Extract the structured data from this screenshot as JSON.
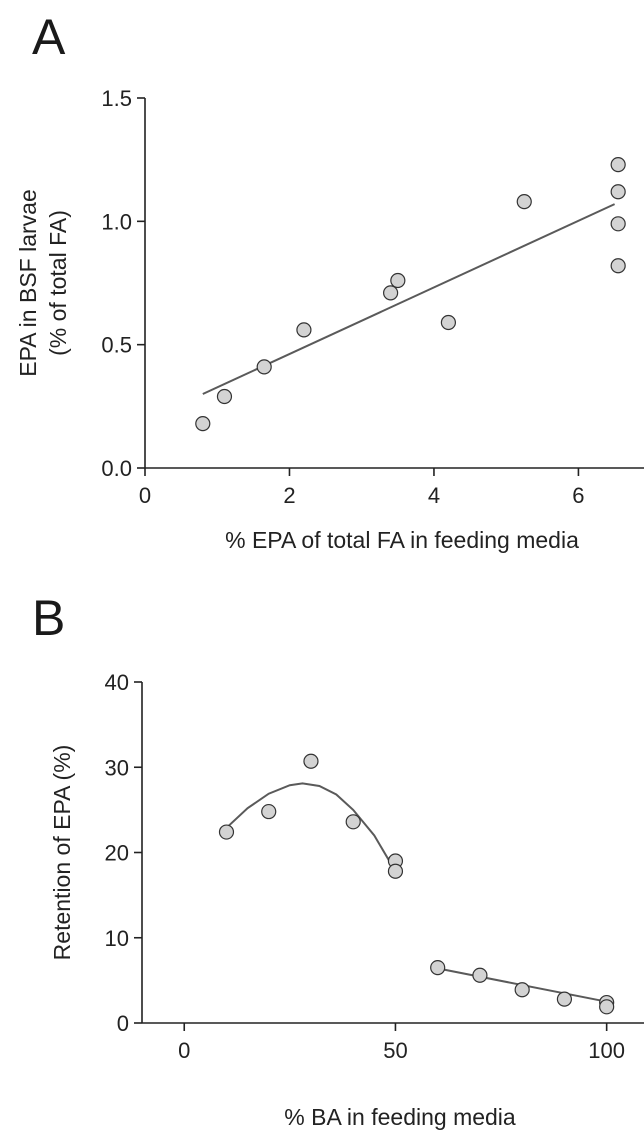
{
  "chart_data": [
    {
      "type": "scatter",
      "panel": "A",
      "xlabel": "% EPA of total FA in feeding media",
      "ylabel_line1": "EPA in BSF larvae",
      "ylabel_line2": "(% of total FA)",
      "xlim": [
        0,
        6.7
      ],
      "ylim": [
        0,
        1.5
      ],
      "xticks": [
        0,
        2,
        4,
        6
      ],
      "xtick_labels": [
        "0",
        "2",
        "4",
        "6"
      ],
      "yticks": [
        0,
        0.5,
        1.0,
        1.5
      ],
      "ytick_labels": [
        "0.0",
        "0.5",
        "1.0",
        "1.5"
      ],
      "points": [
        {
          "x": 0.8,
          "y": 0.18
        },
        {
          "x": 1.1,
          "y": 0.29
        },
        {
          "x": 1.65,
          "y": 0.41
        },
        {
          "x": 2.2,
          "y": 0.56
        },
        {
          "x": 3.4,
          "y": 0.71
        },
        {
          "x": 3.5,
          "y": 0.76
        },
        {
          "x": 4.2,
          "y": 0.59
        },
        {
          "x": 5.25,
          "y": 1.08
        },
        {
          "x": 6.55,
          "y": 1.23
        },
        {
          "x": 6.55,
          "y": 1.12
        },
        {
          "x": 6.55,
          "y": 0.99
        },
        {
          "x": 6.55,
          "y": 0.82
        }
      ],
      "fit_lines": [
        {
          "type": "linear",
          "points": [
            [
              0.8,
              0.3
            ],
            [
              6.5,
              1.07
            ]
          ]
        }
      ],
      "grid": false
    },
    {
      "type": "scatter",
      "panel": "B",
      "xlabel": "% BA in feeding media",
      "ylabel": "Retention of EPA (%)",
      "xlim": [
        -10,
        106
      ],
      "ylim": [
        0,
        40
      ],
      "xticks": [
        0,
        50,
        100
      ],
      "xtick_labels": [
        "0",
        "50",
        "100"
      ],
      "yticks": [
        0,
        10,
        20,
        30,
        40
      ],
      "ytick_labels": [
        "0",
        "10",
        "20",
        "30",
        "40"
      ],
      "points": [
        {
          "x": 10,
          "y": 22.4
        },
        {
          "x": 20,
          "y": 24.8
        },
        {
          "x": 30,
          "y": 30.7
        },
        {
          "x": 40,
          "y": 23.6
        },
        {
          "x": 50,
          "y": 19.0
        },
        {
          "x": 50,
          "y": 17.8
        },
        {
          "x": 60,
          "y": 6.5
        },
        {
          "x": 70,
          "y": 5.6
        },
        {
          "x": 80,
          "y": 3.9
        },
        {
          "x": 90,
          "y": 2.8
        },
        {
          "x": 100,
          "y": 2.4
        },
        {
          "x": 100,
          "y": 1.9
        }
      ],
      "fit_lines": [
        {
          "type": "curve",
          "points": [
            [
              10,
              22.9
            ],
            [
              15,
              25.2
            ],
            [
              20,
              26.9
            ],
            [
              25,
              27.9
            ],
            [
              28,
              28.1
            ],
            [
              32,
              27.8
            ],
            [
              36,
              26.8
            ],
            [
              40,
              25.0
            ],
            [
              45,
              22.0
            ],
            [
              50,
              17.8
            ]
          ]
        },
        {
          "type": "linear",
          "points": [
            [
              60,
              6.4
            ],
            [
              100,
              2.5
            ]
          ]
        }
      ],
      "grid": false
    }
  ]
}
